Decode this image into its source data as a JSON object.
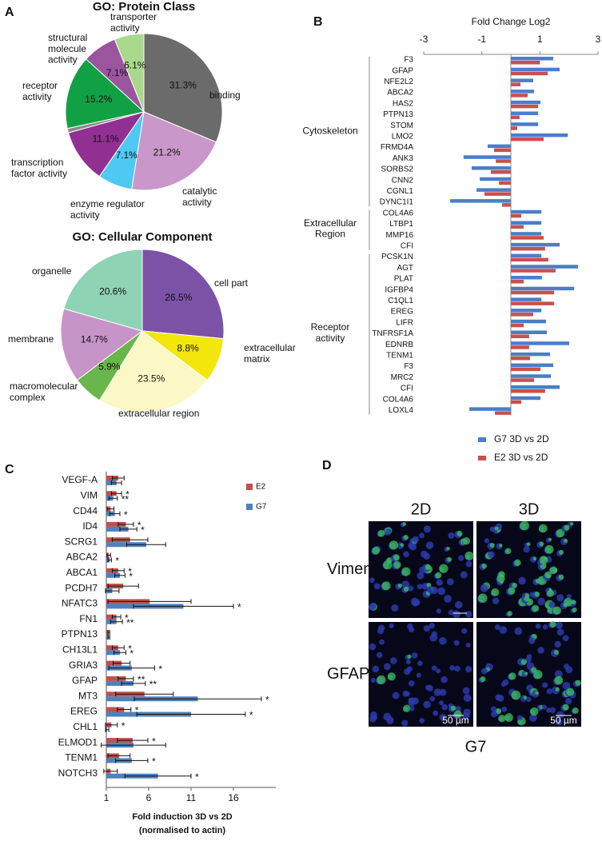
{
  "panel_labels": [
    "A",
    "B",
    "C",
    "D"
  ],
  "chart_data": [
    {
      "type": "pie",
      "title": "GO: Protein Class",
      "categories": [
        "binding",
        "catalytic\nactivity",
        "enzyme regulator\nactivity",
        "transcription\nfactor activity",
        null,
        "receptor\nactivity",
        "structural\nmolecule\nactivity",
        "transporter\nactivity"
      ],
      "values": [
        31.3,
        21.2,
        7.1,
        11.1,
        0.9,
        15.2,
        7.1,
        6.1
      ],
      "value_labels": [
        "31.3%",
        "21.2%",
        "7.1%",
        "11.1%",
        null,
        "15.2%",
        "7.1%",
        "6.1%"
      ],
      "colors": [
        "#6b6b6b",
        "#c997c9",
        "#4dc9f2",
        "#922f93",
        "#8a8a8a",
        "#12a045",
        "#9b559f",
        "#a9d98c"
      ]
    },
    {
      "type": "pie",
      "title": "GO: Cellular Component",
      "categories": [
        "cell part",
        "extracellular\nmatrix",
        "extracellular region",
        "macromolecular\ncomplex",
        "membrane",
        "organelle"
      ],
      "values": [
        26.5,
        8.8,
        23.5,
        5.9,
        14.7,
        20.6
      ],
      "value_labels": [
        "26.5%",
        "8.8%",
        "23.5%",
        "5.9%",
        "14.7%",
        "20.6%"
      ],
      "colors": [
        "#7b52a5",
        "#f2e60a",
        "#fcf8c6",
        "#69b64a",
        "#c794c8",
        "#8ed3b4"
      ]
    },
    {
      "type": "hbar",
      "title": "Fold Change Log2",
      "xlim": [
        -3,
        3
      ],
      "xticks": [
        -3,
        -1,
        1,
        3
      ],
      "categories": [
        "F3",
        "GFAP",
        "NFE2L2",
        "ABCA2",
        "HAS2",
        "PTPN13",
        "STOM",
        "LMO2",
        "FRMD4A",
        "ANK3",
        "SORBS2",
        "CNN2",
        "CGNL1",
        "DYNC1I1",
        "COL4A6",
        "LTBP1",
        "MMP16",
        "CFI",
        "PCSK1N",
        "AGT",
        "PLAT",
        "IGFBP4",
        "C1QL1",
        "EREG",
        "LIFR",
        "TNFRSF1A",
        "EDNRB",
        "TENM1",
        "F3",
        "MRC2",
        "CFI",
        "COL4A6",
        "LOXL4"
      ],
      "groups": [
        {
          "name": "Cytoskeleton",
          "span": [
            0,
            13
          ]
        },
        {
          "name": "Extracellular\nRegion",
          "span": [
            14,
            17
          ]
        },
        {
          "name": "Receptor\nactivity",
          "span": [
            18,
            32
          ]
        }
      ],
      "series": [
        {
          "name": "G7 3D vs 2D",
          "color": "#4a7ec8",
          "values": [
            1.46,
            1.68,
            0.77,
            0.8,
            1.02,
            0.94,
            0.94,
            1.96,
            -0.8,
            -1.63,
            -1.35,
            -1.07,
            -1.18,
            -2.09,
            1.05,
            1.05,
            1.05,
            1.68,
            1.05,
            2.31,
            1.07,
            2.18,
            1.05,
            1.05,
            1.21,
            1.24,
            2.01,
            1.35,
            1.46,
            1.38,
            1.68,
            1.02,
            -1.43
          ]
        },
        {
          "name": "E2 3D vs 2D",
          "color": "#c8504d",
          "values": [
            1.0,
            1.27,
            0.33,
            0.58,
            0.94,
            0.3,
            0.22,
            1.13,
            -0.58,
            -0.52,
            -0.69,
            -0.41,
            -0.91,
            -0.3,
            0.36,
            0.44,
            1.13,
            1.18,
            1.29,
            1.54,
            0.44,
            1.49,
            1.49,
            0.77,
            0.44,
            0.63,
            0.63,
            0.66,
            1.02,
            0.8,
            1.18,
            0.36,
            -0.55
          ]
        }
      ],
      "legend": "bottom"
    },
    {
      "type": "hbar-error",
      "xlabel": [
        "Fold induction 3D vs 2D",
        "(normalised to actin)"
      ],
      "xlim": [
        1,
        21
      ],
      "xticks": [
        1,
        6,
        11,
        16
      ],
      "categories": [
        "VEGF-A",
        "VIM",
        "CD44",
        "ID4",
        "SCRG1",
        "ABCA2",
        "ABCA1",
        "PCDH7",
        "NFATC3",
        "FN1",
        "PTPN13",
        "CH13L1",
        "GRIA3",
        "GFAP",
        "MT3",
        "EREG",
        "CHL1",
        "ELMOD1",
        "TENM1",
        "NOTCH3"
      ],
      "series": [
        {
          "name": "E2",
          "color": "#c0504d",
          "values": [
            2.4,
            2.2,
            1.5,
            3.3,
            3.8,
            1.3,
            2.4,
            3.0,
            6.1,
            2.2,
            1.3,
            2.4,
            2.8,
            3.3,
            5.5,
            3.1,
            1.6,
            4.1,
            2.5,
            1.5
          ],
          "errors": [
            0.7,
            0.6,
            0.4,
            0.9,
            2.1,
            0.2,
            0.7,
            1.8,
            4.9,
            0.5,
            0.1,
            0.7,
            1.0,
            0.9,
            3.4,
            0.8,
            0.7,
            1.8,
            1.3,
            0.8
          ],
          "significance": [
            null,
            "*",
            null,
            "*",
            null,
            null,
            "*",
            null,
            null,
            "*",
            null,
            "*",
            null,
            "**",
            null,
            "*",
            "*",
            "*",
            null,
            null
          ]
        },
        {
          "name": "G7",
          "color": "#4f81bd",
          "values": [
            2.2,
            1.8,
            2.0,
            3.6,
            5.7,
            1.4,
            2.6,
            1.7,
            10.1,
            2.2,
            1.3,
            2.6,
            4.0,
            4.2,
            11.8,
            11.0,
            1.1,
            4.2,
            4.0,
            7.1
          ],
          "errors": [
            0.6,
            0.5,
            0.6,
            1.0,
            2.3,
            0.2,
            0.6,
            0.8,
            5.9,
            0.7,
            0.1,
            0.7,
            2.7,
            1.4,
            7.5,
            6.4,
            0.2,
            3.8,
            1.9,
            3.9
          ],
          "significance": [
            null,
            "**",
            "*",
            "*",
            null,
            "*",
            "*",
            null,
            "*",
            "**",
            null,
            "*",
            "*",
            "**",
            "*",
            "*",
            null,
            null,
            "*",
            "*"
          ]
        }
      ],
      "legend": "top-right"
    }
  ],
  "image_panel": {
    "columns": [
      "2D",
      "3D"
    ],
    "rows": [
      "Vimentin",
      "GFAP"
    ],
    "scale_bars": [
      "50 µm",
      "50 µm"
    ],
    "caption": "G7"
  }
}
